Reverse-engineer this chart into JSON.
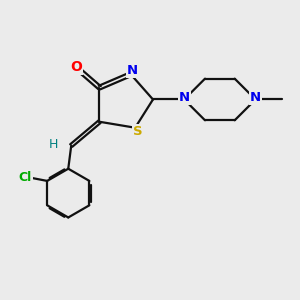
{
  "background_color": "#ebebeb",
  "atom_colors": {
    "O": "#ff0000",
    "N": "#0000ee",
    "S": "#ccaa00",
    "Cl": "#00aa00",
    "H": "#008080",
    "C": "#000000"
  },
  "bond_color": "#111111",
  "bond_width": 1.6,
  "figsize": [
    3.0,
    3.0
  ],
  "dpi": 100
}
